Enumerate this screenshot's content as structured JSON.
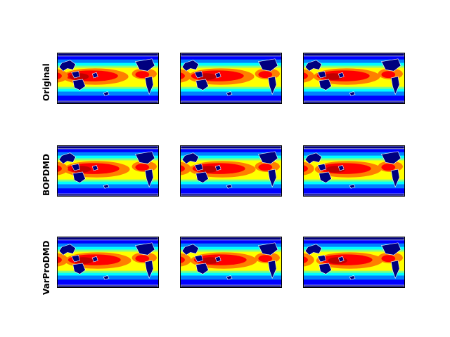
{
  "rows": [
    {
      "label": "Original",
      "variant": 0
    },
    {
      "label": "BOPDMD",
      "variant": 1
    },
    {
      "label": "VarProDMD",
      "variant": 2
    }
  ],
  "columns": 3,
  "colormap": "jet",
  "colors": {
    "land": "#ffffff",
    "cold": "#00007f",
    "blue": "#0000ff",
    "cyan": "#00ffff",
    "yellow": "#ffff00",
    "orange": "#ff7f00",
    "red": "#ff0000",
    "darkred": "#c00000"
  }
}
